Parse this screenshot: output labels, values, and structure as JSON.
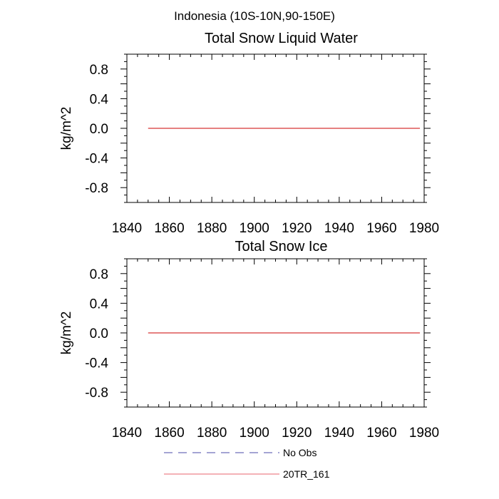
{
  "figure_title": "Indonesia (10S-10N,90-150E)",
  "legend": [
    {
      "label": "No Obs",
      "color": "#4a4aa8",
      "dash": "dashed"
    },
    {
      "label": "20TR_161",
      "color": "#e8646e",
      "dash": "solid"
    }
  ],
  "chart_data": [
    {
      "type": "line",
      "title": "Total Snow Liquid Water",
      "xlabel": "",
      "ylabel": "kg/m^2",
      "xlim": [
        1840,
        1980
      ],
      "ylim": [
        -1.0,
        1.0
      ],
      "xticks": [
        1840,
        1860,
        1880,
        1900,
        1920,
        1940,
        1960,
        1980
      ],
      "yticks": [
        -0.8,
        -0.4,
        0.0,
        0.4,
        0.8
      ],
      "ytick_labels": [
        "-0.8",
        "-0.4",
        "0.0",
        "0.4",
        "0.8"
      ],
      "series": [
        {
          "name": "20TR_161",
          "color": "#cc0000",
          "x": [
            1850,
            1978
          ],
          "y": [
            0.0,
            0.0
          ]
        }
      ]
    },
    {
      "type": "line",
      "title": "Total Snow Ice",
      "xlabel": "",
      "ylabel": "kg/m^2",
      "xlim": [
        1840,
        1980
      ],
      "ylim": [
        -1.0,
        1.0
      ],
      "xticks": [
        1840,
        1860,
        1880,
        1900,
        1920,
        1940,
        1960,
        1980
      ],
      "yticks": [
        -0.8,
        -0.4,
        0.0,
        0.4,
        0.8
      ],
      "ytick_labels": [
        "-0.8",
        "-0.4",
        "0.0",
        "0.4",
        "0.8"
      ],
      "series": [
        {
          "name": "20TR_161",
          "color": "#cc0000",
          "x": [
            1850,
            1978
          ],
          "y": [
            0.0,
            0.0
          ]
        }
      ]
    }
  ]
}
